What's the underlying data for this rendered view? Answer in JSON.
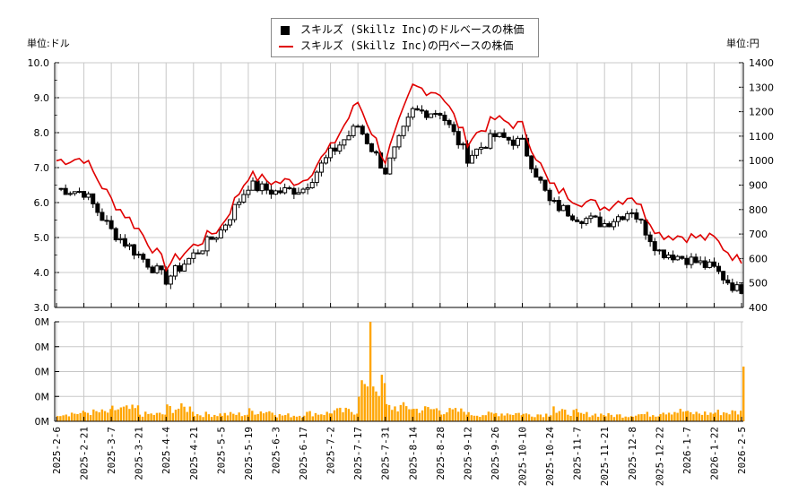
{
  "header": {
    "left_unit": "単位:ドル",
    "right_unit": "単位:円"
  },
  "legend": {
    "items": [
      {
        "label": "スキルズ (Skillz Inc)のドルベースの株価",
        "swatch": "black-square",
        "color": "#000000"
      },
      {
        "label": "スキルズ (Skillz Inc)の円ベースの株価",
        "swatch": "red-line",
        "color": "#e00000"
      }
    ]
  },
  "colors": {
    "usd_candle": "#000000",
    "jpy_line": "#e00000",
    "volume_bar": "#ffa500",
    "grid": "#c8c8c8"
  },
  "chart_data": [
    {
      "type": "candlestick+line",
      "title": "",
      "left_axis": {
        "label": "単位:ドル",
        "ylim": [
          3.0,
          10.0
        ],
        "ticks": [
          "3.0",
          "4.0",
          "5.0",
          "6.0",
          "7.0",
          "8.0",
          "9.0",
          "10.0"
        ]
      },
      "right_axis": {
        "label": "単位:円",
        "ylim": [
          400,
          1400
        ],
        "ticks": [
          "400",
          "500",
          "600",
          "700",
          "800",
          "900",
          "1000",
          "1100",
          "1200",
          "1300",
          "1400"
        ]
      },
      "x_ticks": [
        "2025-2-6",
        "2025-2-21",
        "2025-3-7",
        "2025-3-21",
        "2025-4-4",
        "2025-4-21",
        "2025-5-5",
        "2025-5-19",
        "2025-6-3",
        "2025-6-17",
        "2025-7-2",
        "2025-7-17",
        "2025-7-31",
        "2025-8-14",
        "2025-8-28",
        "2025-9-12",
        "2025-9-26",
        "2025-10-10",
        "2025-10-24",
        "2025-11-7",
        "2025-11-21",
        "2025-12-8",
        "2025-12-22",
        "2026-1-7",
        "2026-1-22",
        "2026-2-5"
      ],
      "grid": true,
      "series": [
        {
          "name": "スキルズ (Skillz Inc)のドルベースの株価",
          "unit": "USD",
          "close_by_tick": [
            6.4,
            6.3,
            5.2,
            4.5,
            3.8,
            4.5,
            5.2,
            6.5,
            6.3,
            6.4,
            7.4,
            8.2,
            6.9,
            8.6,
            8.6,
            7.3,
            7.9,
            7.7,
            6.0,
            5.6,
            5.4,
            5.8,
            4.6,
            4.4,
            4.1,
            3.4
          ],
          "range": {
            "min": 3.1,
            "max": 9.3
          }
        },
        {
          "name": "スキルズ (Skillz Inc)の円ベースの株価",
          "unit": "JPY",
          "values_by_tick": [
            1000,
            1010,
            840,
            720,
            570,
            650,
            730,
            940,
            910,
            920,
            1050,
            1240,
            1000,
            1300,
            1280,
            1080,
            1170,
            1140,
            900,
            840,
            810,
            860,
            700,
            690,
            680,
            580
          ],
          "range": {
            "min": 510,
            "max": 1330
          }
        }
      ]
    },
    {
      "type": "bar",
      "title": "",
      "ylabel": "",
      "y_ticks": [
        "0M",
        "0M",
        "0M",
        "0M",
        "0M"
      ],
      "categories": [
        "2025-2-6",
        "2025-2-21",
        "2025-3-7",
        "2025-3-21",
        "2025-4-4",
        "2025-4-21",
        "2025-5-5",
        "2025-5-19",
        "2025-6-3",
        "2025-6-17",
        "2025-7-2",
        "2025-7-17",
        "2025-7-31",
        "2025-8-14",
        "2025-8-28",
        "2025-9-12",
        "2025-9-26",
        "2025-10-10",
        "2025-10-24",
        "2025-11-7",
        "2025-11-21",
        "2025-12-8",
        "2025-12-22",
        "2026-1-7",
        "2026-1-22",
        "2026-2-5"
      ],
      "series": [
        {
          "name": "volume",
          "relative_values": [
            0.08,
            0.09,
            0.12,
            0.07,
            0.13,
            0.07,
            0.07,
            0.1,
            0.06,
            0.08,
            0.1,
            0.35,
            0.14,
            0.12,
            0.1,
            0.07,
            0.08,
            0.07,
            0.09,
            0.07,
            0.06,
            0.07,
            0.1,
            0.08,
            0.09,
            0.55
          ]
        }
      ],
      "notable_spikes": [
        {
          "date": "2025-3-14",
          "relative": 0.16
        },
        {
          "date": "2025-7-23",
          "relative": 1.0
        },
        {
          "date": "2025-10-22",
          "relative": 0.15
        },
        {
          "date": "2026-2-6",
          "relative": 0.21
        }
      ]
    }
  ]
}
